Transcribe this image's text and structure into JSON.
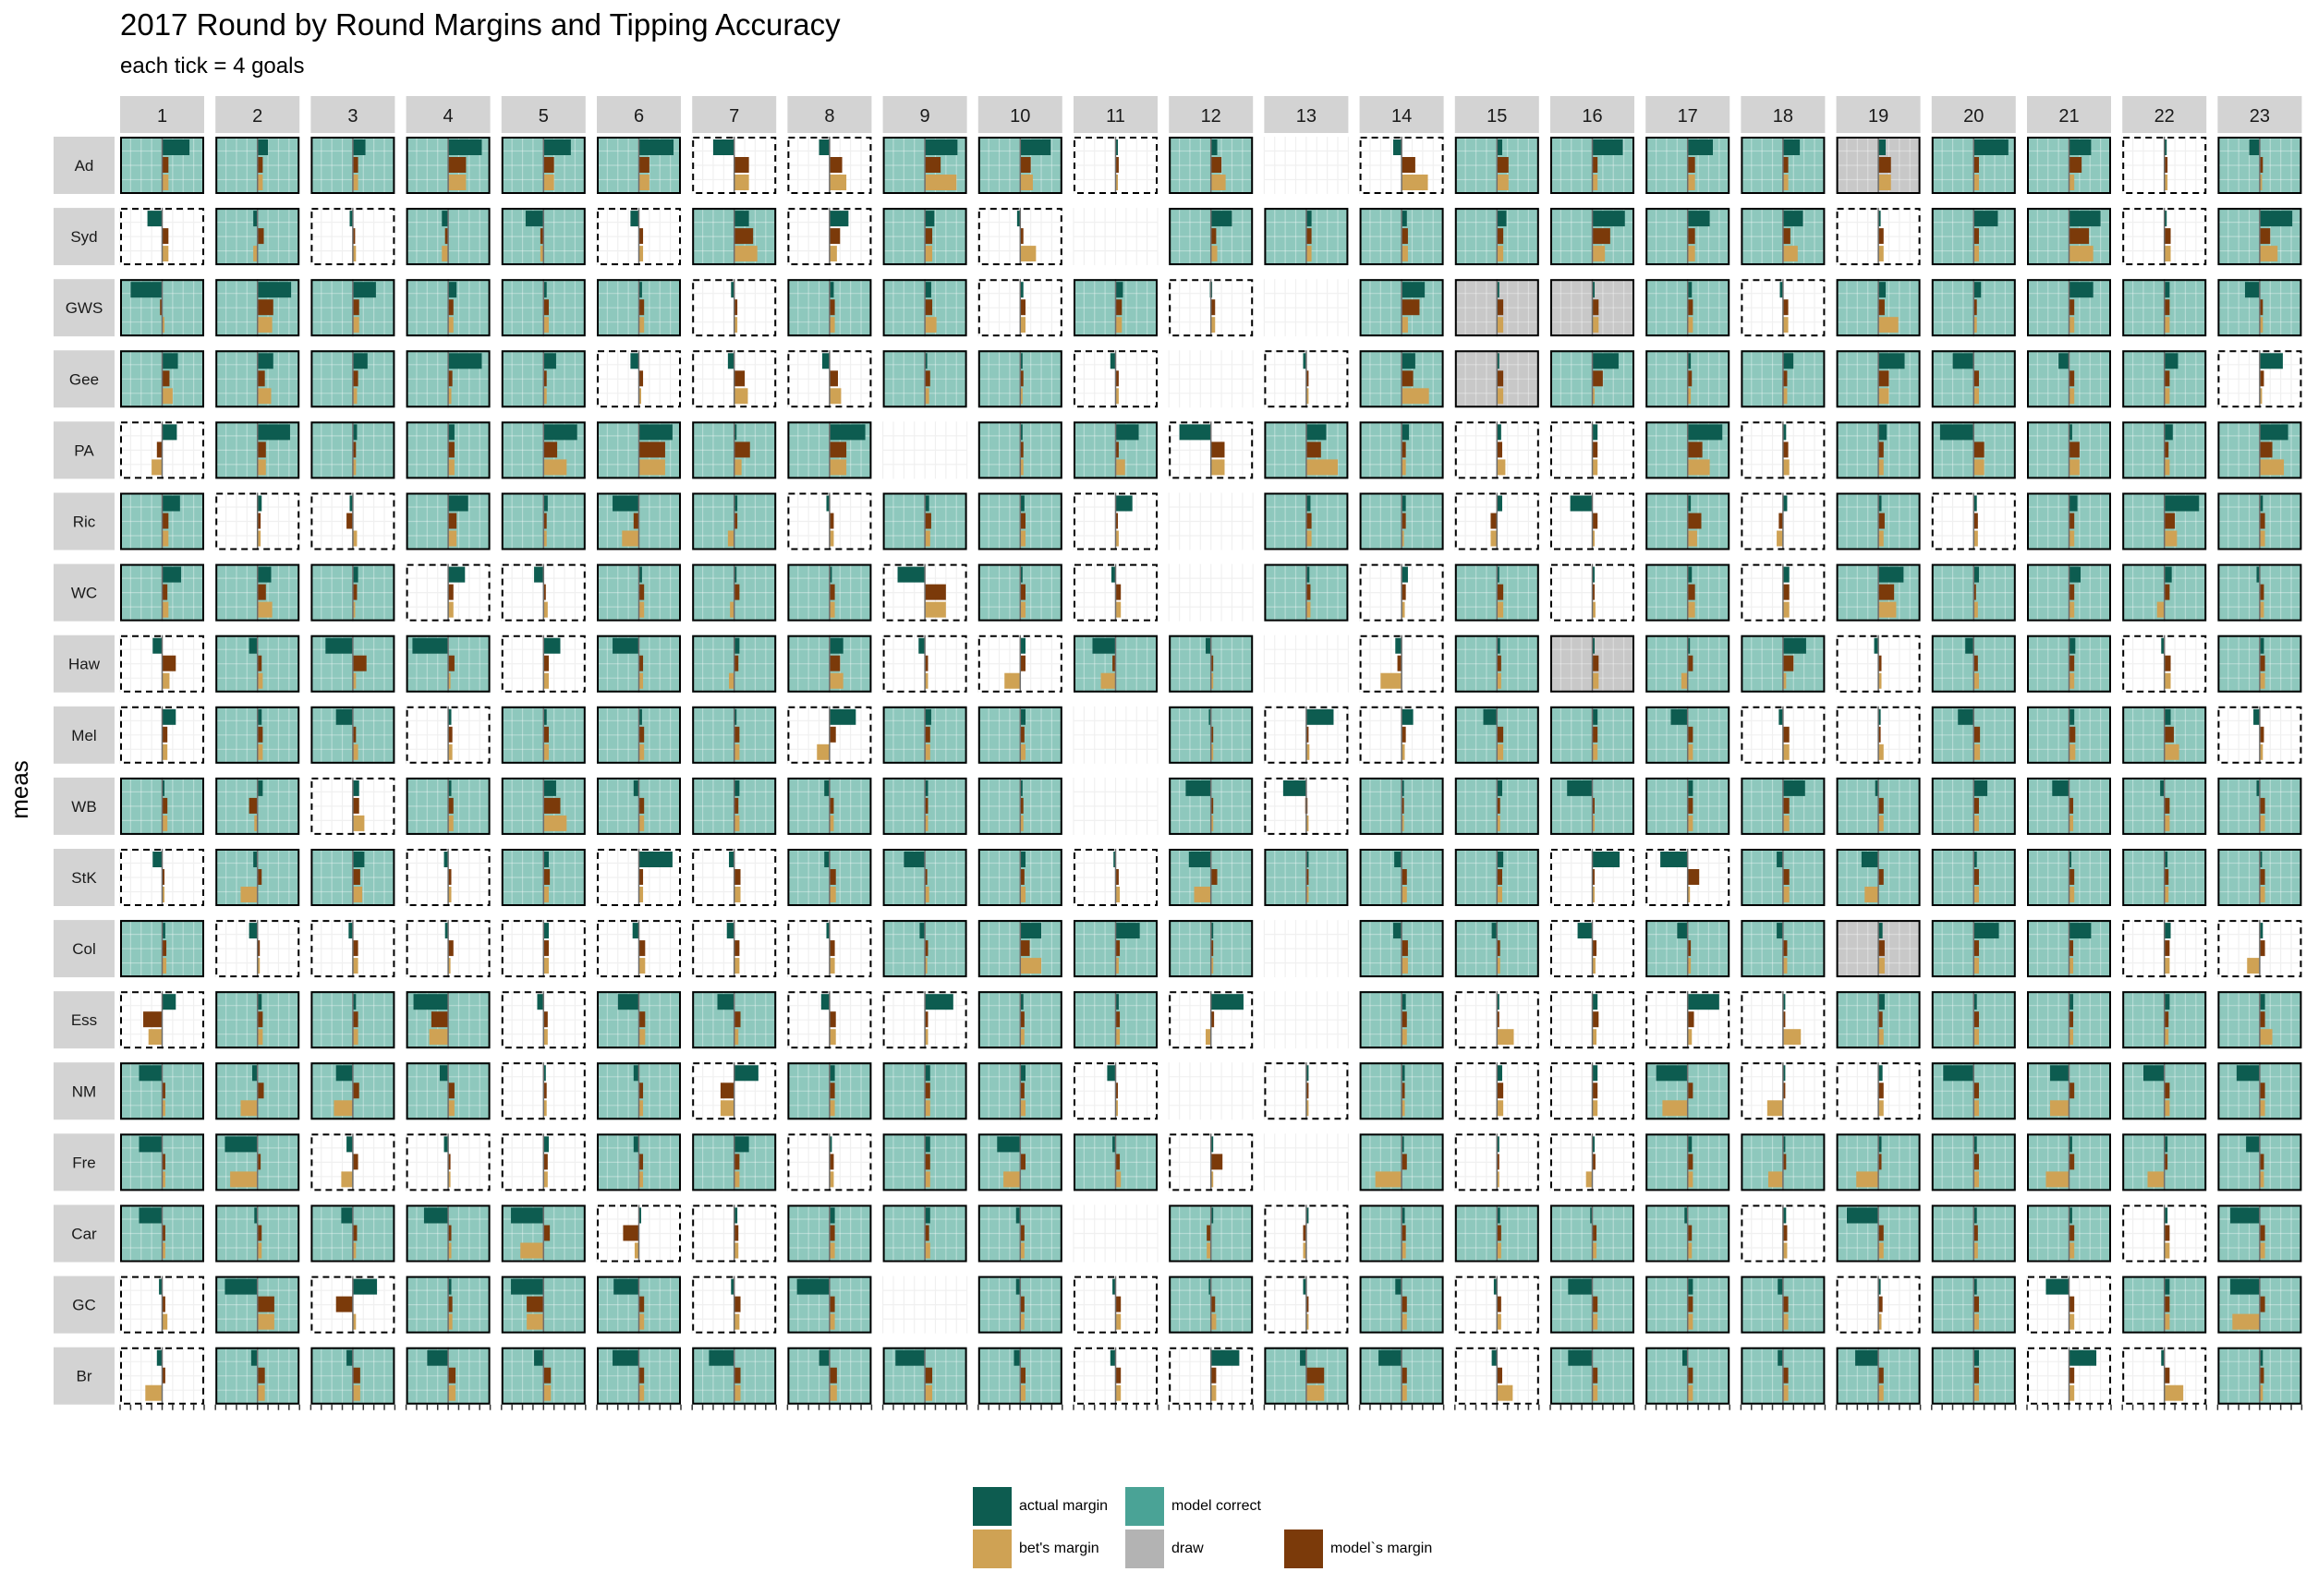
{
  "chart_data": {
    "type": "faceted-bar",
    "title": "2017 Round by Round Margins and Tipping Accuracy",
    "subtitle": "each tick = 4 goals",
    "ylabel": "meas",
    "rounds": [
      "1",
      "2",
      "3",
      "4",
      "5",
      "6",
      "7",
      "8",
      "9",
      "10",
      "11",
      "12",
      "13",
      "14",
      "15",
      "16",
      "17",
      "18",
      "19",
      "20",
      "21",
      "22",
      "23"
    ],
    "teams": [
      "Ad",
      "Syd",
      "GWS",
      "Gee",
      "PA",
      "Ric",
      "WC",
      "Haw",
      "Mel",
      "WB",
      "StK",
      "Col",
      "Ess",
      "NM",
      "Fre",
      "Car",
      "GC",
      "Br"
    ],
    "xlim": [
      -4,
      4
    ],
    "x_ticks": [
      -4,
      -3,
      -2,
      -1,
      0,
      1,
      2,
      3,
      4
    ],
    "colors": {
      "actual_margin": "#0d5c50",
      "bets_margin": "#cfa254",
      "models_margin": "#7b3a0a",
      "model_correct": "#8ec8bd",
      "draw": "#c8c8c8",
      "strip": "#d3d3d3",
      "grid": "#f0f0f0"
    },
    "legend": [
      {
        "key": "actual_margin",
        "label": "actual margin"
      },
      {
        "key": "model_correct",
        "label": "model correct"
      },
      {
        "key": "bets_margin",
        "label": "bet's margin"
      },
      {
        "key": "draw",
        "label": "draw"
      },
      {
        "key": "models_margin",
        "label": "model`s margin"
      }
    ],
    "legend_position": "bottom",
    "cell_encoding": "each cell string lists 'actual,model,bet,outcome' in goals; outcome: C = model correct (solid border, teal), W = model wrong (dashed border), D = draw (grey), B = bye (empty)",
    "cells": {
      "Ad": [
        "2.6,0.6,0.6,C",
        "1,0.5,0.5,C",
        "1.2,0.5,0.5,C",
        "3.2,1.7,1.7,C",
        "2.6,1,1,C",
        "3.3,1,1,C",
        "-2,1.4,1.4,W",
        "-1,1.2,1.6,W",
        "3.1,1.5,3,C",
        "2.9,1,1.2,C",
        "0.2,0.3,0.2,W",
        "0.6,1,1.4,C",
        "0,0,0,B",
        "-0.8,1.3,2.5,W",
        "0.5,1.1,1.1,C",
        "2.9,0.5,0.5,C",
        "2.4,0.7,0.7,C",
        "1.6,0.5,0.5,C",
        "0.7,1.2,1.2,D",
        "3.3,0.5,0.5,C",
        "2.1,1.2,0.5,C",
        "0.1,0.3,0.3,W",
        "-1,0.3,0,C"
      ],
      "Syd": [
        "-1.4,0.6,0.6,W",
        "-0.4,0.6,-0.4,C",
        "-0.3,0.1,0.3,W",
        "-0.6,-0.3,-0.6,C",
        "-1.7,-0.3,-0.3,C",
        "-0.8,0.4,0.4,W",
        "1.4,1.8,2.2,C",
        "1.8,1,0.7,W",
        "0.9,0.7,0.7,C",
        "-0.3,0.3,1.5,W",
        "0,0,0,B",
        "2,0.5,0.6,C",
        "0.5,0.5,0.5,C",
        "0.5,0.6,0.6,C",
        "0.9,0.6,0.6,C",
        "3.1,1.7,1.2,C",
        "2.1,0.7,0.7,C",
        "1.9,0.7,1.4,C",
        "0.1,0.5,0.5,W",
        "2.3,0.5,0.5,C",
        "3,1.9,2.3,C",
        "0.2,0.6,0.6,W",
        "3.1,1,1.7,C"
      ],
      "GWS": [
        "-3,-0.2,0.2,C",
        "3.2,1.5,1.4,C",
        "2.2,0.6,0.6,C",
        "0.8,0.5,0.5,C",
        "0.3,0.5,0.5,C",
        "0.3,0.5,0.5,C",
        "-0.3,0.3,0.3,W",
        "0.4,0.5,0.5,C",
        "0.6,0.7,1.1,C",
        "0.3,0.5,0.5,W",
        "0.7,0.6,0.6,C",
        "-0.1,0.4,0.4,W",
        "0,0,0,B",
        "2.2,1.7,0.6,C",
        "0,0.6,0.6,D",
        "0,0.6,0.6,D",
        "0.4,0.5,0.5,C",
        "-0.3,0.5,0.5,W",
        "0.7,0.6,1.9,C",
        "0.7,0.3,0.3,C",
        "2.3,0.5,0.5,C",
        "0.5,0.5,0.5,C",
        "-1.4,0.3,0.3,C"
      ],
      "Gee": [
        "1.5,0.7,1,C",
        "1.5,0.7,1.3,C",
        "1.4,0.5,0.4,C",
        "3.2,0.4,0.3,C",
        "1.2,0.3,0.3,C",
        "-0.8,0.4,0.2,W",
        "-0.6,1,1.3,W",
        "-0.7,0.8,1.1,W",
        "0.2,0.5,0.4,C",
        "0.1,0.3,0.2,C",
        "-0.5,0.3,0.3,W",
        "0,0,0,B",
        "-0.3,0.1,0.2,W",
        "1.3,1.1,2.6,C",
        "0.2,0.6,0.6,D",
        "2.5,1,0.2,C",
        "0.3,0.4,0.3,C",
        "1,0.4,0.4,C",
        "2.5,1,1,C",
        "-2,0.5,0.5,C",
        "-1,0.5,0.5,C",
        "1.3,0.5,0.5,C",
        "2.2,0.4,0.2,W"
      ],
      "PA": [
        "1.4,-0.5,-1,W",
        "3.1,0.8,0.8,C",
        "0.4,0.3,0.3,C",
        "0.6,0.6,0.6,C",
        "3.2,1.3,2.2,C",
        "3.2,2.5,2.5,C",
        "0.2,1.5,0.7,C",
        "3.4,1.6,1.6,C",
        "0,0,0,B",
        "0.2,0.3,0.3,C",
        "2.2,0.3,0.9,C",
        "-3,1.3,1.3,W",
        "1.9,1.4,3,C",
        "0.7,0.4,0.4,C",
        "0.4,0.5,0.8,W",
        "0.5,0.5,0.5,W",
        "3.3,1.4,2.1,C",
        "0.3,0.5,0.6,W",
        "0.8,0.5,0.5,C",
        "-3.2,1,1,C",
        "0.3,1,1,C",
        "0.8,0.4,0.5,C",
        "2.7,1.2,2.3,C"
      ],
      "Ric": [
        "1.7,0.6,0.6,C",
        "0.4,0.3,0.3,W",
        "-0.3,-0.6,0.4,W",
        "1.9,0.8,0.8,C",
        "0.4,0.3,0.3,C",
        "-2.5,-0.5,-1.6,C",
        "0.3,0.3,-0.6,C",
        "-0.3,0.4,0.4,W",
        "0.4,0.6,0.5,C",
        "0.4,0.5,0.5,C",
        "1.6,0.2,0.3,W",
        "0,0,0,B",
        "0.4,0.5,0.5,C",
        "0.4,0.4,0.2,C",
        "0.5,-0.6,-0.6,W",
        "-2.1,0.5,0.2,W",
        "0.3,1.3,0.9,C",
        "0.4,-0.4,-0.6,W",
        "0.3,0.6,0.5,C",
        "0.3,0.4,0.4,W",
        "0.8,0.5,0.5,C",
        "3.3,1,1.2,C",
        "0.3,0.5,0.5,C"
      ],
      "WC": [
        "1.8,0.5,0.6,C",
        "1.3,0.8,1.4,C",
        "0.5,0.4,0.2,C",
        "1.6,0.5,0.5,W",
        "-0.9,0.1,0.4,W",
        "0.3,0.5,0.5,C",
        "0.1,0.5,-0.4,C",
        "0.2,0.5,0.5,C",
        "-2.6,2,2,W",
        "0.2,0.5,0.5,C",
        "-0.4,0.5,0.5,W",
        "0,0,0,B",
        "0.3,0.4,0.4,C",
        "0.6,0.4,0.3,W",
        "0.2,0.6,0.6,C",
        "0.2,0.1,0.3,W",
        "0.4,0.7,0.7,C",
        "0.6,0.6,0.6,W",
        "2.4,1.5,1.7,C",
        "0.5,0.2,0.4,C",
        "1.1,0.5,0.5,C",
        "0.7,0.5,-0.7,C",
        "-0.3,0.4,0.4,C"
      ],
      "Haw": [
        "-0.9,1.3,0.7,W",
        "-0.8,0.4,0.5,C",
        "-2.6,1.3,0.3,C",
        "-3.4,0.6,0.2,C",
        "1.6,0.5,0.5,W",
        "-2.5,0.4,0.4,C",
        "0.5,0.4,-0.5,C",
        "1.3,1,1.3,C",
        "-0.6,0.3,0.3,W",
        "0.5,0.5,-1.5,W",
        "-2.2,-0.3,-1.4,C",
        "-0.5,0.1,0.1,C",
        "0,0,0,B",
        "-0.6,-0.4,-2,W",
        "0.3,0.4,0.4,C",
        "0,0.6,0.6,D",
        "0.2,0.5,-0.6,C",
        "2.2,1,0.3,C",
        "-0.4,0.3,0.3,W",
        "-0.8,0.4,0.5,C",
        "0.6,0.5,0.5,C",
        "-0.3,0.6,0.6,W",
        "0.4,0.5,0.5,C"
      ],
      "Mel": [
        "1.3,0.5,0.5,W",
        "0.4,0.5,0.5,C",
        "-1.6,0.3,0.5,C",
        "0.3,0.4,0.4,W",
        "0.3,0.5,0.5,C",
        "0.3,0.5,0.5,C",
        "0.2,0.5,0.5,C",
        "2.5,0.6,-1.2,W",
        "0.6,0.5,0.5,C",
        "0.5,0.4,0.5,C",
        "0,0,0,B",
        "-0.2,0.1,0.2,C",
        "2.6,0.2,0.3,W",
        "1.1,0.4,0.3,W",
        "-1.3,0.6,0.6,C",
        "0.5,0.5,0.5,C",
        "-1.6,0.5,0.5,C",
        "-0.4,0.6,0.6,W",
        "0.2,0.2,0.5,W",
        "-1.5,0.6,0.6,C",
        "0.5,0.6,0.6,C",
        "0.6,0.9,1.4,C",
        "-0.6,0.4,0.3,W"
      ],
      "WB": [
        "0.2,0.5,0.5,C",
        "0.5,-0.8,-0.3,C",
        "0.6,0.6,1.1,W",
        "0.3,0.5,0.5,C",
        "1.2,1.6,2.2,C",
        "-0.5,0.5,0.5,C",
        "0.5,0.4,0.5,C",
        "-0.5,0.4,0.4,C",
        "0.3,0.3,0.3,C",
        "0.2,0.3,0.3,C",
        "0,0,0,B",
        "-2.4,0.2,0.2,C",
        "-2.2,-0.1,0.1,W",
        "0.1,0.1,0.2,C",
        "0.5,0.3,0.3,C",
        "-2.4,0.2,0.2,C",
        "0.5,0.5,0.5,C",
        "2.1,0.6,0.6,C",
        "-0.3,0.5,0.5,C",
        "1.3,0.5,0.5,C",
        "-1.6,0.4,0.4,C",
        "-0.4,0.5,0.5,C",
        "-0.3,0.5,0.5,C"
      ],
      "StK": [
        "-0.9,0.1,0.2,W",
        "-0.4,0.4,-1.6,C",
        "1.1,0.7,0.9,C",
        "-0.4,0.3,0.3,W",
        "0.5,0.6,0.5,C",
        "3.2,0.4,0.4,W",
        "-0.5,0.6,0.6,W",
        "-0.5,0.6,0.6,C",
        "-2,0.2,0.4,C",
        "0.5,0.4,0.5,C",
        "-0.2,0.3,0.4,W",
        "-2.1,0.6,-1.6,C",
        "0.1,0.1,0.1,C",
        "-0.7,0.5,0.5,C",
        "0.6,0.5,0.5,C",
        "2.6,0.1,0.1,W",
        "-2.6,1.1,0.1,W",
        "-0.6,0.6,0.6,C",
        "-1.6,0.5,-1.3,C",
        "0.3,0.5,0.5,C",
        "0.2,0.5,0.5,C",
        "0.3,0.4,0.4,C",
        "0.2,0.5,0.5,C"
      ],
      "Col": [
        "0.3,0.4,0.4,C",
        "-0.8,0.2,0.2,W",
        "-0.4,0.5,0.5,W",
        "-0.3,0.5,0.2,W",
        "0.5,0.5,0.5,W",
        "-0.6,0.6,0.6,W",
        "-0.7,0.5,0.5,W",
        "-0.3,0.5,0.5,W",
        "-0.5,0.3,0.2,C",
        "2,0.9,2,C",
        "2.3,0.4,0.3,C",
        "0.1,0.1,0.1,C",
        "0,0,0,B",
        "-0.8,0.6,0.6,C",
        "-0.5,0.3,0.3,C",
        "-1.4,0.4,0.3,W",
        "-1,0.3,0.3,C",
        "-0.6,0.4,0.4,C",
        "0.4,0.6,0.6,D",
        "2.4,0.5,0.5,C",
        "2.1,0.4,0.4,C",
        "0.6,0.5,0.5,W",
        "0.3,0.5,-1.2,W"
      ],
      "Ess": [
        "1.3,-1.8,-1.3,W",
        "0.4,0.5,0.5,C",
        "0.3,0.5,0.5,C",
        "-3.3,-1.6,-1.8,C",
        "-0.6,0.4,0.4,W",
        "-2,0.6,0.6,C",
        "-1.6,0.6,0.4,C",
        "-0.8,0.6,0.6,W",
        "2.7,0.3,0.3,W",
        "0.3,0.4,0.4,C",
        "0.3,0.4,0.4,C",
        "3.1,0.3,-0.5,W",
        "0,0,0,B",
        "0.4,0.5,0.5,C",
        "0.2,0.2,1.6,W",
        "0.5,0.6,0.4,W",
        "3,0.6,0.4,W",
        "0.1,0.2,1.7,W",
        "0.6,0.4,0.5,C",
        "0.3,0.5,0.5,C",
        "0.4,0.4,0.4,C",
        "0.5,0.4,0.4,C",
        "0.5,0.5,1.2,C"
      ],
      "NM": [
        "-2.2,0.3,0.3,C",
        "-0.5,0.6,-1.6,C",
        "-1.6,0.6,-1.8,C",
        "-0.8,0.6,0.6,C",
        "0.1,0.3,0.3,W",
        "-0.5,0.4,0.4,C",
        "2.3,-1.3,-1.3,W",
        "0.5,0.5,0.5,C",
        "0.5,0.5,0.5,C",
        "0.5,0.4,0.5,C",
        "-0.8,0.2,0.2,W",
        "0,0,0,B",
        "0.2,0.2,0.2,W",
        "0.3,0.3,0.3,C",
        "0.5,0.6,0.6,W",
        "0.5,0.5,0.5,W",
        "-3,0.5,-2.4,C",
        "0.1,0.2,-1.5,W",
        "0.4,0.5,0.5,W",
        "-2.9,0.5,0.5,C",
        "-1.8,0.5,-1.8,C",
        "-2,0.5,0.5,C",
        "-2.2,0.5,0.5,C"
      ],
      "Fre": [
        "-2.2,0.3,0.3,C",
        "-3.1,0.3,-2.6,C",
        "-0.6,0.5,-1.1,W",
        "-0.4,0.2,0.2,W",
        "0.5,0.4,0.4,W",
        "-0.5,0.4,0.4,C",
        "1.4,0.5,0.5,C",
        "0.2,0.4,0.4,W",
        "0.5,0.5,0.5,C",
        "-2.2,0.5,-1.6,C",
        "-0.3,0.4,0.5,C",
        "0.1,1.1,0.1,W",
        "0,0,0,B",
        "0.2,0.5,-2.5,C",
        "0.2,0.2,0.2,W",
        "0.2,0.3,-0.6,W",
        "0.4,0.5,0.5,C",
        "0.2,0.3,-1.4,C",
        "0.3,0.3,-2.1,C",
        "0.3,0.5,0.5,C",
        "0.3,0.5,-2.2,C",
        "0.3,0.3,-1.6,C",
        "-1.3,0.4,0.4,C"
      ],
      "Car": [
        "-2.2,0.3,0.3,C",
        "-0.3,0.4,0.4,C",
        "-1.1,0.4,0.3,C",
        "-2.3,0.3,0.3,C",
        "-3.1,0.6,-2.2,C",
        "0.2,-1.5,-0.4,W",
        "0.3,0.4,0.4,W",
        "0.5,0.5,0.5,C",
        "0.5,0.4,0.5,C",
        "-0.4,0.4,0.4,C",
        "0,0,0,B",
        "0.2,-0.4,-0.4,C",
        "0.2,-0.3,-0.3,W",
        "0.3,0.4,0.4,C",
        "0.3,0.4,0.4,C",
        "-0.2,0.4,0.4,C",
        "-0.3,0.4,0.4,C",
        "0.3,0.4,0.4,W",
        "-3,0.5,0.5,C",
        "0.3,0.4,0.4,C",
        "0.3,0.5,0.5,C",
        "0.3,0.5,0.5,W",
        "-2.8,0.5,0.5,C"
      ],
      "GC": [
        "-0.3,0.3,0.5,W",
        "-3.1,1.6,1.6,C",
        "2.3,-1.6,0.3,W",
        "0.3,0.4,0.4,C",
        "-3.1,-1.6,-1.6,C",
        "-2.4,0.5,0.5,C",
        "-0.3,0.6,0.5,W",
        "-3.1,0.5,0.5,C",
        "0,0,0,B",
        "-0.4,0.4,0.4,C",
        "-0.3,0.5,0.5,W",
        "-0.2,0.4,0.5,C",
        "-0.3,0.2,0.1,W",
        "-0.6,0.5,0.5,C",
        "-0.3,0.4,0.4,W",
        "-2.3,0.5,0.5,C",
        "0.5,0.5,0.5,C",
        "-0.5,0.5,0.5,C",
        "0.2,0.4,0.3,W",
        "0.3,0.5,0.5,C",
        "-2.2,0.5,0.5,W",
        "0.5,0.5,0.5,C",
        "-2.8,0.5,-2.6,C"
      ],
      "Br": [
        "-0.5,0.3,-1.6,W",
        "-0.6,0.7,0.7,C",
        "-0.6,0.7,0.7,C",
        "-2,0.7,0.7,C",
        "-0.9,0.7,0.7,C",
        "-2.5,0.5,0.5,C",
        "-2.4,0.6,0.6,C",
        "-1,0.7,0.7,C",
        "-2.8,0.7,0.7,C",
        "-0.6,0.5,0.5,C",
        "-0.5,0.5,0.5,W",
        "2.7,0.5,0.5,W",
        "-0.6,1.7,1.7,C",
        "-2.2,0.5,0.5,C",
        "-0.5,0.5,1.5,W",
        "-2.3,0.5,0.5,C",
        "-0.5,0.5,0.5,C",
        "-0.5,0.5,0.5,C",
        "-2.2,0.5,0.5,C",
        "0.5,0.5,0.5,C",
        "2.6,0.5,0.5,W",
        "-0.3,0.5,1.8,W",
        "0.3,0.4,0.3,C"
      ]
    }
  }
}
